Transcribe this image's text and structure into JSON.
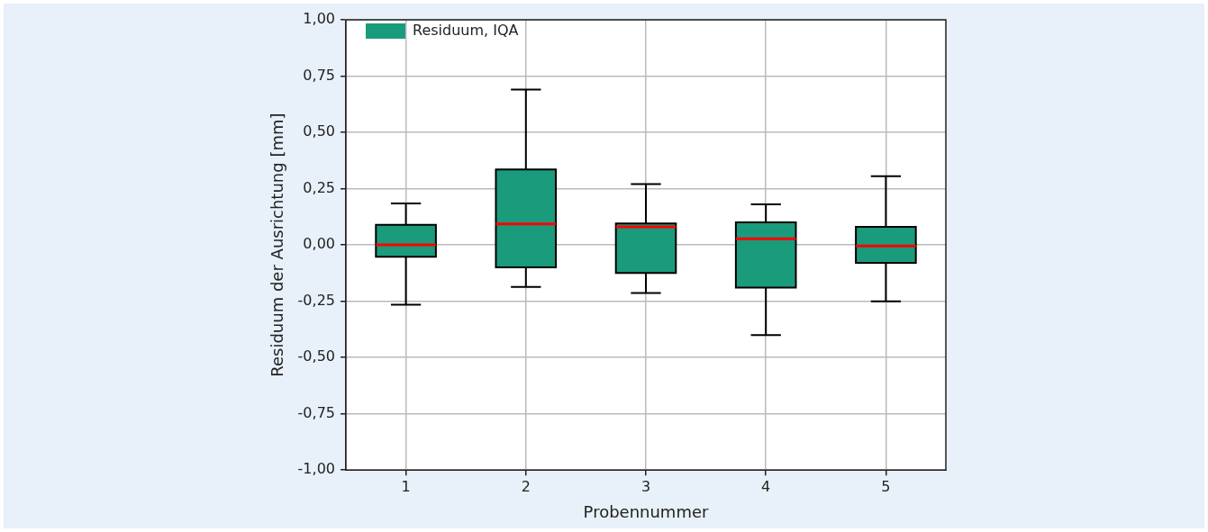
{
  "chart_data": {
    "type": "box",
    "xlabel": "Probennummer",
    "ylabel": "Residuum der Ausrichtung [mm]",
    "categories": [
      "1",
      "2",
      "3",
      "4",
      "5"
    ],
    "series": [
      {
        "name": "Residuum, IQA",
        "color": "#1a9b7b",
        "boxes": [
          {
            "low": -0.265,
            "q1": -0.053,
            "median": 0.0,
            "q3": 0.089,
            "high": 0.184
          },
          {
            "low": -0.187,
            "q1": -0.1,
            "median": 0.093,
            "q3": 0.335,
            "high": 0.69
          },
          {
            "low": -0.214,
            "q1": -0.125,
            "median": 0.08,
            "q3": 0.095,
            "high": 0.27
          },
          {
            "low": -0.4,
            "q1": -0.19,
            "median": 0.027,
            "q3": 0.1,
            "high": 0.18
          },
          {
            "low": -0.25,
            "q1": -0.08,
            "median": -0.005,
            "q3": 0.08,
            "high": 0.305
          }
        ]
      }
    ],
    "ylim": [
      -1,
      1
    ],
    "yticks": [
      {
        "value": -1,
        "label": "-1,00"
      },
      {
        "value": -0.75,
        "label": "-0,75"
      },
      {
        "value": -0.5,
        "label": "-0,50"
      },
      {
        "value": -0.25,
        "label": "-0,25"
      },
      {
        "value": 0,
        "label": "0,00"
      },
      {
        "value": 0.25,
        "label": "0,25"
      },
      {
        "value": 0.5,
        "label": "0,50"
      },
      {
        "value": 0.75,
        "label": "0,75"
      },
      {
        "value": 1,
        "label": "1,00"
      }
    ],
    "grid": true,
    "legend": "top left"
  }
}
